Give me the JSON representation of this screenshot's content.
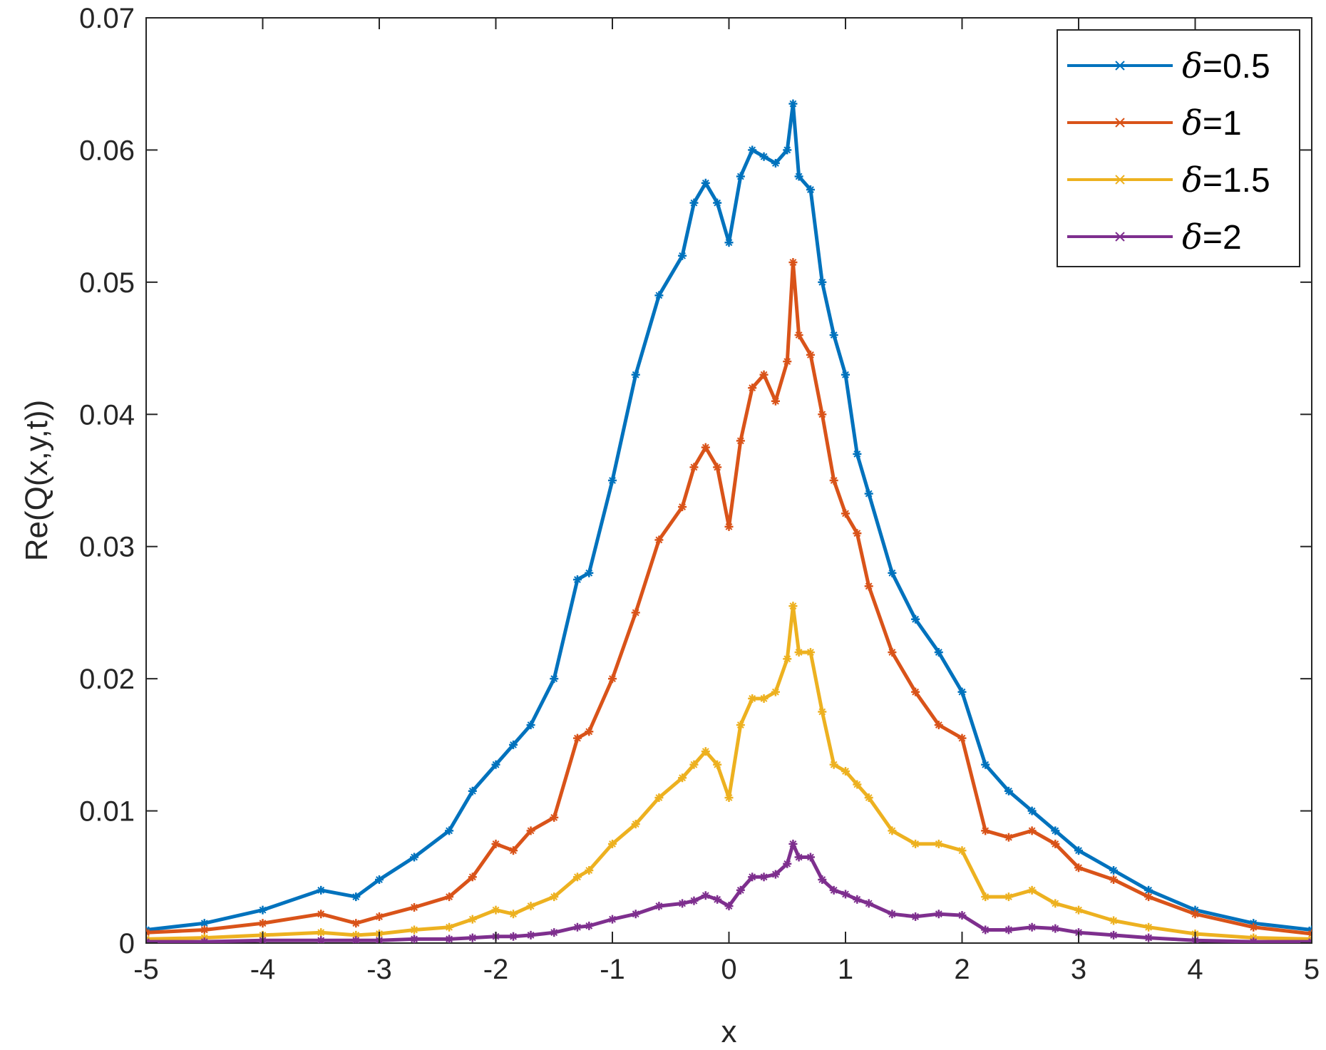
{
  "chart_data": {
    "type": "line",
    "title": "",
    "xlabel": "x",
    "ylabel": "Re(Q(x,y,t))",
    "xlim": [
      -5,
      5
    ],
    "ylim": [
      0,
      0.07
    ],
    "xticks": [
      -5,
      -4,
      -3,
      -2,
      -1,
      0,
      1,
      2,
      3,
      4,
      5
    ],
    "yticks": [
      0,
      0.01,
      0.02,
      0.03,
      0.04,
      0.05,
      0.06,
      0.07
    ],
    "xtick_labels": [
      "-5",
      "-4",
      "-3",
      "-2",
      "-1",
      "0",
      "1",
      "2",
      "3",
      "4",
      "5"
    ],
    "ytick_labels": [
      "0",
      "0.01",
      "0.02",
      "0.03",
      "0.04",
      "0.05",
      "0.06",
      "0.07"
    ],
    "grid": false,
    "legend_position": "top-right",
    "marker": "asterisk",
    "series": [
      {
        "name": "δ=0.5",
        "label_symbol": "δ",
        "label_value": "=0.5",
        "color": "#0072BD",
        "x": [
          -5,
          -4.5,
          -4,
          -3.5,
          -3.2,
          -3,
          -2.7,
          -2.4,
          -2.2,
          -2,
          -1.85,
          -1.7,
          -1.5,
          -1.3,
          -1.2,
          -1,
          -0.8,
          -0.6,
          -0.4,
          -0.3,
          -0.2,
          -0.1,
          0,
          0.1,
          0.2,
          0.3,
          0.4,
          0.5,
          0.55,
          0.6,
          0.7,
          0.8,
          0.9,
          1,
          1.1,
          1.2,
          1.4,
          1.6,
          1.8,
          2,
          2.2,
          2.4,
          2.6,
          2.8,
          3,
          3.3,
          3.6,
          4,
          4.5,
          5
        ],
        "y": [
          0.001,
          0.0015,
          0.0025,
          0.004,
          0.0035,
          0.0048,
          0.0065,
          0.0085,
          0.0115,
          0.0135,
          0.015,
          0.0165,
          0.02,
          0.0275,
          0.028,
          0.035,
          0.043,
          0.049,
          0.052,
          0.056,
          0.0575,
          0.056,
          0.053,
          0.058,
          0.06,
          0.0595,
          0.059,
          0.06,
          0.0635,
          0.058,
          0.057,
          0.05,
          0.046,
          0.043,
          0.037,
          0.034,
          0.028,
          0.0245,
          0.022,
          0.019,
          0.0135,
          0.0115,
          0.01,
          0.0085,
          0.007,
          0.0055,
          0.004,
          0.0025,
          0.0015,
          0.001
        ]
      },
      {
        "name": "δ=1",
        "label_symbol": "δ",
        "label_value": "=1",
        "color": "#D95319",
        "x": [
          -5,
          -4.5,
          -4,
          -3.5,
          -3.2,
          -3,
          -2.7,
          -2.4,
          -2.2,
          -2,
          -1.85,
          -1.7,
          -1.5,
          -1.3,
          -1.2,
          -1,
          -0.8,
          -0.6,
          -0.4,
          -0.3,
          -0.2,
          -0.1,
          0,
          0.1,
          0.2,
          0.3,
          0.4,
          0.5,
          0.55,
          0.6,
          0.7,
          0.8,
          0.9,
          1,
          1.1,
          1.2,
          1.4,
          1.6,
          1.8,
          2,
          2.2,
          2.4,
          2.6,
          2.8,
          3,
          3.3,
          3.6,
          4,
          4.5,
          5
        ],
        "y": [
          0.0008,
          0.001,
          0.0015,
          0.0022,
          0.0015,
          0.002,
          0.0027,
          0.0035,
          0.005,
          0.0075,
          0.007,
          0.0085,
          0.0095,
          0.0155,
          0.016,
          0.02,
          0.025,
          0.0305,
          0.033,
          0.036,
          0.0375,
          0.036,
          0.0315,
          0.038,
          0.042,
          0.043,
          0.041,
          0.044,
          0.0515,
          0.046,
          0.0445,
          0.04,
          0.035,
          0.0325,
          0.031,
          0.027,
          0.022,
          0.019,
          0.0165,
          0.0155,
          0.0085,
          0.008,
          0.0085,
          0.0075,
          0.0057,
          0.0048,
          0.0035,
          0.0022,
          0.0012,
          0.0007
        ]
      },
      {
        "name": "δ=1.5",
        "label_symbol": "δ",
        "label_value": "=1.5",
        "color": "#EDB120",
        "x": [
          -5,
          -4.5,
          -4,
          -3.5,
          -3.2,
          -3,
          -2.7,
          -2.4,
          -2.2,
          -2,
          -1.85,
          -1.7,
          -1.5,
          -1.3,
          -1.2,
          -1,
          -0.8,
          -0.6,
          -0.4,
          -0.3,
          -0.2,
          -0.1,
          0,
          0.1,
          0.2,
          0.3,
          0.4,
          0.5,
          0.55,
          0.6,
          0.7,
          0.8,
          0.9,
          1,
          1.1,
          1.2,
          1.4,
          1.6,
          1.8,
          2,
          2.2,
          2.4,
          2.6,
          2.8,
          3,
          3.3,
          3.6,
          4,
          4.5,
          5
        ],
        "y": [
          0.0003,
          0.0004,
          0.0006,
          0.0008,
          0.0006,
          0.0007,
          0.001,
          0.0012,
          0.0018,
          0.0025,
          0.0022,
          0.0028,
          0.0035,
          0.005,
          0.0055,
          0.0075,
          0.009,
          0.011,
          0.0125,
          0.0135,
          0.0145,
          0.0135,
          0.011,
          0.0165,
          0.0185,
          0.0185,
          0.019,
          0.0215,
          0.0255,
          0.022,
          0.022,
          0.0175,
          0.0135,
          0.013,
          0.012,
          0.011,
          0.0085,
          0.0075,
          0.0075,
          0.007,
          0.0035,
          0.0035,
          0.004,
          0.003,
          0.0025,
          0.0017,
          0.0012,
          0.0007,
          0.0004,
          0.0003
        ]
      },
      {
        "name": "δ=2",
        "label_symbol": "δ",
        "label_value": "=2",
        "color": "#7E2F8E",
        "x": [
          -5,
          -4.5,
          -4,
          -3.5,
          -3.2,
          -3,
          -2.7,
          -2.4,
          -2.2,
          -2,
          -1.85,
          -1.7,
          -1.5,
          -1.3,
          -1.2,
          -1,
          -0.8,
          -0.6,
          -0.4,
          -0.3,
          -0.2,
          -0.1,
          0,
          0.1,
          0.2,
          0.3,
          0.4,
          0.5,
          0.55,
          0.6,
          0.7,
          0.8,
          0.9,
          1,
          1.1,
          1.2,
          1.4,
          1.6,
          1.8,
          2,
          2.2,
          2.4,
          2.6,
          2.8,
          3,
          3.3,
          3.6,
          4,
          4.5,
          5
        ],
        "y": [
          0.0001,
          0.0001,
          0.0002,
          0.0002,
          0.0002,
          0.0002,
          0.0003,
          0.0003,
          0.0004,
          0.0005,
          0.0005,
          0.0006,
          0.0008,
          0.0012,
          0.0013,
          0.0018,
          0.0022,
          0.0028,
          0.003,
          0.0032,
          0.0036,
          0.0033,
          0.0028,
          0.004,
          0.005,
          0.005,
          0.0052,
          0.006,
          0.0075,
          0.0065,
          0.0065,
          0.0048,
          0.004,
          0.0037,
          0.0033,
          0.003,
          0.0022,
          0.002,
          0.0022,
          0.0021,
          0.001,
          0.001,
          0.0012,
          0.0011,
          0.0008,
          0.0006,
          0.0004,
          0.0002,
          0.0001,
          0.0001
        ]
      }
    ]
  }
}
